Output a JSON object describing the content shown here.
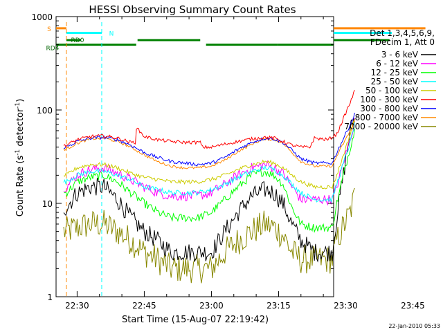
{
  "chart_data": {
    "type": "line",
    "title": "HESSI Observing Summary Count Rates",
    "xlabel": "Start Time (15-Aug-07 22:19:42)",
    "ylabel_main": "Count Rate (s",
    "ylabel_sup1": "-1",
    "ylabel_mid": " detector",
    "ylabel_sup2": "-1",
    "ylabel_end": ")",
    "footer": "22-Jan-2010 05:33",
    "y_scale": "log",
    "ylim": [
      1,
      1000
    ],
    "xlim_minutes": [
      -4.7,
      57.3
    ],
    "x_ticks": [
      {
        "label": "22:30",
        "min": 0
      },
      {
        "label": "22:45",
        "min": 15
      },
      {
        "label": "23:00",
        "min": 30
      },
      {
        "label": "23:15",
        "min": 45
      },
      {
        "label": "23:30",
        "min": 60
      },
      {
        "label": "23:45",
        "min": 75
      }
    ],
    "y_ticks": [
      {
        "label": "1",
        "value": 1
      },
      {
        "label": "10",
        "value": 10
      },
      {
        "label": "100",
        "value": 100
      },
      {
        "label": "1000",
        "value": 1000
      }
    ],
    "legend": {
      "header": [
        "Det 1,3,4,5,6,9,",
        "FDecim 1, Att 0"
      ],
      "entries": [
        {
          "label": "3 - 6 keV",
          "color": "#000000"
        },
        {
          "label": "6 - 12 keV",
          "color": "#ff00ff"
        },
        {
          "label": "12 - 25 keV",
          "color": "#00ff00"
        },
        {
          "label": "25 - 50 keV",
          "color": "#00ffff"
        },
        {
          "label": "50 - 100 keV",
          "color": "#cccc00"
        },
        {
          "label": "100 - 300 keV",
          "color": "#ff0000"
        },
        {
          "label": "300 - 800 keV",
          "color": "#0000ff"
        },
        {
          "label": "800 - 7000 keV",
          "color": "#ff8800"
        },
        {
          "label": "7000 - 20000 keV",
          "color": "#888800"
        }
      ]
    },
    "flag_labels": [
      {
        "text": "S",
        "color": "#ff8800"
      },
      {
        "text": "N",
        "color": "#00ffff"
      },
      {
        "text": "RD0",
        "color": "#006400"
      },
      {
        "text": "RD4",
        "color": "#006400"
      }
    ],
    "flag_bars": {
      "S": {
        "color": "#ff8800",
        "value": 750,
        "segments": [
          [
            -4.7,
            -2.4
          ],
          [
            77.8,
            87.3
          ]
        ]
      },
      "N": {
        "color": "#00ffff",
        "value": 670,
        "segments": [
          [
            -2.4,
            5.5
          ],
          [
            70.3,
            87.3
          ]
        ]
      },
      "RD0": {
        "color": "#008000",
        "value": 560,
        "segments": [
          [
            -2.4,
            0.8
          ],
          [
            13.5,
            27.5
          ],
          [
            69.8,
            87.3
          ]
        ]
      },
      "RD4": {
        "color": "#008000",
        "value": 500,
        "segments": [
          [
            -4.7,
            13.2
          ],
          [
            28.8,
            44.8
          ],
          [
            44.8,
            60.5
          ]
        ]
      }
    },
    "vlines": [
      {
        "minute": -2.4,
        "color": "#ff8800",
        "dashed": true
      },
      {
        "minute": 5.5,
        "color": "#00ffff",
        "dashed": true
      },
      {
        "minute": 83.5,
        "color": "#00ffff",
        "dashed": true
      },
      {
        "minute": 77.8,
        "color": "#ff8800",
        "dashed": true
      }
    ],
    "series": [
      {
        "name": "3 - 6 keV",
        "color": "#000000",
        "noise": 0.22,
        "points": [
          [
            -3.0,
            9
          ],
          [
            -2.4,
            9
          ],
          [
            0,
            13
          ],
          [
            3,
            15
          ],
          [
            6,
            15
          ],
          [
            9,
            11
          ],
          [
            12,
            7
          ],
          [
            15,
            5
          ],
          [
            18,
            4
          ],
          [
            21,
            3
          ],
          [
            24,
            3
          ],
          [
            27,
            3
          ],
          [
            30,
            3
          ],
          [
            33,
            5
          ],
          [
            36,
            8
          ],
          [
            39,
            12
          ],
          [
            42,
            14
          ],
          [
            44,
            13
          ],
          [
            46,
            10
          ],
          [
            48,
            6
          ],
          [
            50,
            4
          ],
          [
            53,
            3
          ],
          [
            57,
            3
          ],
          [
            58,
            7
          ],
          [
            61,
            60
          ],
          [
            62,
            85
          ]
        ]
      },
      {
        "name": "6 - 12 keV",
        "color": "#ff00ff",
        "noise": 0.12,
        "points": [
          [
            -3.0,
            15
          ],
          [
            -2.4,
            15
          ],
          [
            0,
            20
          ],
          [
            3,
            23
          ],
          [
            6,
            24
          ],
          [
            9,
            21
          ],
          [
            12,
            18
          ],
          [
            15,
            15
          ],
          [
            18,
            13
          ],
          [
            21,
            12
          ],
          [
            24,
            12
          ],
          [
            27,
            12
          ],
          [
            30,
            13
          ],
          [
            33,
            16
          ],
          [
            36,
            20
          ],
          [
            39,
            24
          ],
          [
            42,
            26
          ],
          [
            44,
            24
          ],
          [
            46,
            21
          ],
          [
            48,
            15
          ],
          [
            50,
            11
          ],
          [
            53,
            11
          ],
          [
            57,
            11
          ],
          [
            58,
            15
          ],
          [
            61,
            50
          ],
          [
            62,
            75
          ]
        ]
      },
      {
        "name": "12 - 25 keV",
        "color": "#00ff00",
        "noise": 0.1,
        "points": [
          [
            -3.0,
            13
          ],
          [
            -2.4,
            13
          ],
          [
            0,
            17
          ],
          [
            3,
            19
          ],
          [
            6,
            20
          ],
          [
            9,
            17
          ],
          [
            12,
            13
          ],
          [
            15,
            10
          ],
          [
            18,
            8
          ],
          [
            21,
            7
          ],
          [
            24,
            7
          ],
          [
            27,
            7
          ],
          [
            30,
            8
          ],
          [
            33,
            11
          ],
          [
            36,
            15
          ],
          [
            39,
            20
          ],
          [
            42,
            22
          ],
          [
            44,
            20
          ],
          [
            46,
            16
          ],
          [
            48,
            9
          ],
          [
            50,
            6
          ],
          [
            53,
            5.5
          ],
          [
            57,
            5.5
          ],
          [
            58,
            10
          ],
          [
            61,
            40
          ],
          [
            62,
            60
          ]
        ]
      },
      {
        "name": "25 - 50 keV",
        "color": "#00ffff",
        "noise": 0.06,
        "points": [
          [
            -3.0,
            17
          ],
          [
            -2.4,
            17
          ],
          [
            0,
            20
          ],
          [
            3,
            22
          ],
          [
            6,
            22
          ],
          [
            9,
            20
          ],
          [
            12,
            18
          ],
          [
            15,
            15
          ],
          [
            18,
            14
          ],
          [
            21,
            13
          ],
          [
            24,
            13
          ],
          [
            27,
            13
          ],
          [
            30,
            14
          ],
          [
            33,
            16
          ],
          [
            36,
            19
          ],
          [
            39,
            22
          ],
          [
            42,
            24
          ],
          [
            44,
            23
          ],
          [
            46,
            20
          ],
          [
            48,
            16
          ],
          [
            50,
            13
          ],
          [
            53,
            11
          ],
          [
            57,
            11
          ],
          [
            58,
            16
          ],
          [
            61,
            45
          ],
          [
            62,
            70
          ]
        ]
      },
      {
        "name": "50 - 100 keV",
        "color": "#cccc00",
        "noise": 0.05,
        "points": [
          [
            -3.0,
            20
          ],
          [
            -2.4,
            20
          ],
          [
            0,
            24
          ],
          [
            3,
            26
          ],
          [
            6,
            26
          ],
          [
            9,
            24
          ],
          [
            12,
            21
          ],
          [
            15,
            19
          ],
          [
            18,
            18
          ],
          [
            21,
            17
          ],
          [
            24,
            17
          ],
          [
            27,
            17
          ],
          [
            30,
            18
          ],
          [
            33,
            20
          ],
          [
            36,
            23
          ],
          [
            39,
            26
          ],
          [
            42,
            28
          ],
          [
            44,
            27
          ],
          [
            46,
            24
          ],
          [
            48,
            20
          ],
          [
            50,
            17
          ],
          [
            53,
            15
          ],
          [
            57,
            15
          ],
          [
            58,
            20
          ],
          [
            61,
            55
          ],
          [
            62,
            80
          ]
        ]
      },
      {
        "name": "100 - 300 keV",
        "color": "#ff0000",
        "noise": 0.04,
        "points": [
          [
            -3.0,
            42
          ],
          [
            -2.4,
            42
          ],
          [
            0,
            48
          ],
          [
            3,
            52
          ],
          [
            6,
            53
          ],
          [
            9,
            50
          ],
          [
            12,
            45
          ],
          [
            13,
            45
          ],
          [
            13.2,
            65
          ],
          [
            15,
            52
          ],
          [
            18,
            48
          ],
          [
            21,
            46
          ],
          [
            24,
            45
          ],
          [
            27,
            45
          ],
          [
            27.5,
            45
          ],
          [
            28,
            40
          ],
          [
            30,
            40
          ],
          [
            33,
            43
          ],
          [
            36,
            46
          ],
          [
            39,
            49
          ],
          [
            42,
            51
          ],
          [
            44,
            50
          ],
          [
            46,
            46
          ],
          [
            48,
            42
          ],
          [
            50,
            40
          ],
          [
            52,
            40
          ],
          [
            53,
            50
          ],
          [
            56,
            48
          ],
          [
            58,
            55
          ],
          [
            61,
            120
          ],
          [
            62,
            160
          ]
        ]
      },
      {
        "name": "300 - 800 keV",
        "color": "#0000ff",
        "noise": 0.04,
        "points": [
          [
            -3.0,
            40
          ],
          [
            -2.4,
            40
          ],
          [
            0,
            46
          ],
          [
            3,
            50
          ],
          [
            6,
            51
          ],
          [
            9,
            48
          ],
          [
            12,
            42
          ],
          [
            15,
            35
          ],
          [
            18,
            31
          ],
          [
            21,
            28
          ],
          [
            24,
            27
          ],
          [
            27,
            26
          ],
          [
            30,
            27
          ],
          [
            33,
            31
          ],
          [
            36,
            38
          ],
          [
            39,
            45
          ],
          [
            42,
            50
          ],
          [
            44,
            49
          ],
          [
            46,
            45
          ],
          [
            48,
            37
          ],
          [
            50,
            30
          ],
          [
            53,
            27
          ],
          [
            57,
            27
          ],
          [
            58,
            35
          ],
          [
            61,
            70
          ],
          [
            62,
            90
          ]
        ]
      },
      {
        "name": "800 - 7000 keV",
        "color": "#ff8800",
        "noise": 0.03,
        "points": [
          [
            -3.0,
            38
          ],
          [
            -2.4,
            38
          ],
          [
            0,
            44
          ],
          [
            3,
            49
          ],
          [
            6,
            50
          ],
          [
            9,
            46
          ],
          [
            12,
            40
          ],
          [
            15,
            33
          ],
          [
            18,
            28
          ],
          [
            21,
            25
          ],
          [
            24,
            24
          ],
          [
            27,
            24
          ],
          [
            30,
            25
          ],
          [
            33,
            29
          ],
          [
            36,
            36
          ],
          [
            39,
            43
          ],
          [
            42,
            49
          ],
          [
            44,
            48
          ],
          [
            46,
            44
          ],
          [
            48,
            35
          ],
          [
            50,
            28
          ],
          [
            53,
            25
          ],
          [
            57,
            25
          ],
          [
            58,
            32
          ],
          [
            61,
            60
          ],
          [
            62,
            75
          ]
        ]
      },
      {
        "name": "7000 - 20000 keV",
        "color": "#888800",
        "noise": 0.35,
        "points": [
          [
            -3.0,
            5
          ],
          [
            -2.4,
            5
          ],
          [
            0,
            5.5
          ],
          [
            3,
            6
          ],
          [
            6,
            6
          ],
          [
            9,
            5
          ],
          [
            12,
            4
          ],
          [
            15,
            3
          ],
          [
            18,
            2.5
          ],
          [
            21,
            2
          ],
          [
            24,
            2
          ],
          [
            27,
            2
          ],
          [
            30,
            2
          ],
          [
            33,
            3
          ],
          [
            36,
            4
          ],
          [
            39,
            5
          ],
          [
            42,
            6
          ],
          [
            44,
            5.5
          ],
          [
            46,
            4.5
          ],
          [
            48,
            3
          ],
          [
            50,
            2.5
          ],
          [
            53,
            2.5
          ],
          [
            57,
            2.5
          ],
          [
            58,
            4
          ],
          [
            61,
            8
          ],
          [
            62,
            12
          ]
        ]
      }
    ]
  }
}
